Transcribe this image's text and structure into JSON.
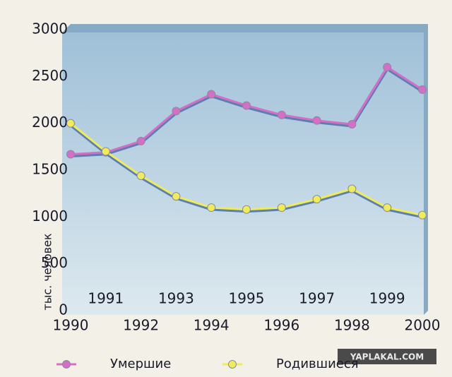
{
  "chart_data": {
    "type": "line",
    "y_label": "тыс. человек",
    "x": [
      1990,
      1991,
      1992,
      1993,
      1994,
      1995,
      1996,
      1997,
      1998,
      1999,
      2000
    ],
    "xlim": [
      1990,
      2000
    ],
    "xticks": [
      1990,
      1991,
      1992,
      1993,
      1994,
      1995,
      1996,
      1997,
      1998,
      1999,
      2000
    ],
    "ylim": [
      0,
      3000
    ],
    "yticks": [
      0,
      500,
      1000,
      1500,
      2000,
      2500,
      3000
    ],
    "series": [
      {
        "name": "Умершие",
        "color": "#d36fc6",
        "values": [
          1670,
          1690,
          1810,
          2130,
          2310,
          2190,
          2090,
          2030,
          1990,
          2600,
          2360
        ]
      },
      {
        "name": "Родившиеся",
        "color": "#eeec5c",
        "values": [
          2000,
          1700,
          1440,
          1220,
          1100,
          1080,
          1100,
          1190,
          1300,
          1100,
          1020
        ]
      }
    ],
    "watermark": "YAPLAKAL.COM"
  }
}
